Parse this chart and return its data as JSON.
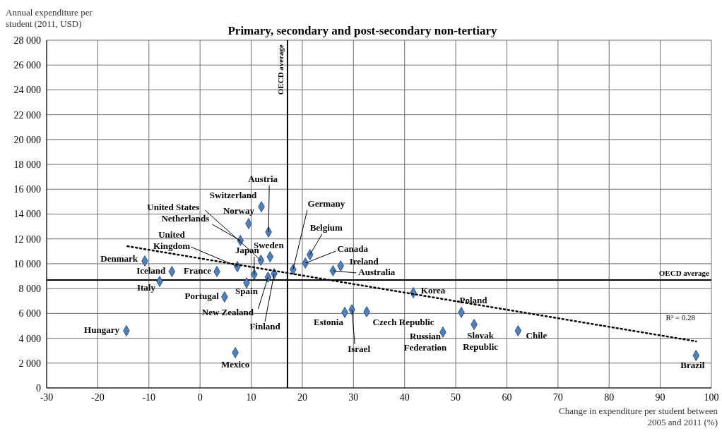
{
  "chart_data": {
    "type": "scatter",
    "title": "Primary, secondary and post-secondary non-tertiary",
    "xlabel": "Change in expenditure per student between 2005 and 2011 (%)",
    "ylabel": "Annual expenditure per student  (2011, USD)",
    "xlim": [
      -30,
      100
    ],
    "xticks": [
      -30,
      -20,
      -10,
      0,
      10,
      20,
      30,
      40,
      50,
      60,
      70,
      80,
      90,
      100
    ],
    "ylim": [
      0,
      28000
    ],
    "yticks": [
      0,
      {
        "value": 2000,
        "label": "2 000"
      },
      {
        "value": 4000,
        "label": "4 000"
      },
      {
        "value": 6000,
        "label": "6 000"
      },
      {
        "value": 8000,
        "label": "8 000"
      },
      {
        "value": 10000,
        "label": "10 000"
      },
      {
        "value": 12000,
        "label": "12 000"
      },
      {
        "value": 14000,
        "label": "14 000"
      },
      {
        "value": 16000,
        "label": "16 000"
      },
      {
        "value": 18000,
        "label": "18 000"
      },
      {
        "value": 20000,
        "label": "20 000"
      },
      {
        "value": 22000,
        "label": "22 000"
      },
      {
        "value": 24000,
        "label": "24 000"
      },
      {
        "value": 26000,
        "label": "26 000"
      },
      {
        "value": 28000,
        "label": "28 000"
      }
    ],
    "grid": true,
    "marker": "diamond",
    "series": [
      {
        "color": "#4f81bd",
        "x": [
          -14.4,
          -10.8,
          -5.5,
          -7.9,
          3.3,
          6.9,
          4.8,
          7.3,
          10.6,
          9.1,
          13.3,
          14.5,
          7.9,
          11.9,
          9.5,
          12.0,
          13.4,
          13.7,
          18.2,
          21.5,
          20.6,
          27.5,
          26.0,
          28.3,
          29.7,
          32.6,
          41.7,
          47.5,
          51.1,
          53.6,
          62.2,
          97.0
        ],
        "values": [
          4600,
          10220,
          9370,
          8580,
          9370,
          2840,
          7330,
          9770,
          9140,
          8460,
          8920,
          9200,
          11870,
          10280,
          13230,
          14590,
          12550,
          10560,
          9540,
          10730,
          10050,
          9820,
          9430,
          6080,
          6300,
          6130,
          7670,
          4490,
          6080,
          5110,
          4600,
          2610
        ]
      },
      {
        "type": "line",
        "color": "#000000",
        "line_style": "dotted",
        "marker": "none",
        "x": [
          -14.2,
          97
        ],
        "values": [
          11410,
          3750
        ]
      }
    ],
    "ref_lines": [
      {
        "axis": "x",
        "value": 17.1,
        "label": "OECD average",
        "color": "#000000"
      },
      {
        "axis": "y",
        "value": 8690,
        "label": "OECD average",
        "color": "#000000"
      }
    ],
    "annotations": [
      {
        "text": "Hungary",
        "x": -14.4,
        "y": 4600
      },
      {
        "text": "Denmark",
        "x": -10.8,
        "y": 10220
      },
      {
        "text": "Iceland",
        "x": -5.5,
        "y": 9370
      },
      {
        "text": "Italy",
        "x": -7.9,
        "y": 8580
      },
      {
        "text": "France",
        "x": 3.3,
        "y": 9370
      },
      {
        "text": "Mexico",
        "x": 6.9,
        "y": 2840
      },
      {
        "text": "Portugal",
        "x": 4.8,
        "y": 7330
      },
      {
        "text": "United Kingdom",
        "x": 7.3,
        "y": 9770
      },
      {
        "text": "Japan",
        "x": 10.6,
        "y": 9140
      },
      {
        "text": "Spain",
        "x": 9.1,
        "y": 8460
      },
      {
        "text": "New Zealand",
        "x": 13.3,
        "y": 8920
      },
      {
        "text": "Finland",
        "x": 14.5,
        "y": 9200
      },
      {
        "text": "Netherlands",
        "x": 7.9,
        "y": 11870
      },
      {
        "text": "United States",
        "x": 11.9,
        "y": 10280
      },
      {
        "text": "Norway",
        "x": 9.5,
        "y": 13230
      },
      {
        "text": "Switzerland",
        "x": 12.0,
        "y": 14590
      },
      {
        "text": "Austria",
        "x": 13.4,
        "y": 12550
      },
      {
        "text": "Sweden",
        "x": 13.7,
        "y": 10560
      },
      {
        "text": "Germany",
        "x": 18.2,
        "y": 9540
      },
      {
        "text": "Belgium",
        "x": 21.5,
        "y": 10730
      },
      {
        "text": "Canada",
        "x": 20.6,
        "y": 10050
      },
      {
        "text": "Ireland",
        "x": 27.5,
        "y": 9820
      },
      {
        "text": "Australia",
        "x": 26.0,
        "y": 9430
      },
      {
        "text": "Estonia",
        "x": 28.3,
        "y": 6080
      },
      {
        "text": "Israel",
        "x": 29.7,
        "y": 6300
      },
      {
        "text": "Czech Republic",
        "x": 32.6,
        "y": 6130
      },
      {
        "text": "Korea",
        "x": 41.7,
        "y": 7670
      },
      {
        "text": "Russian Federation",
        "x": 47.5,
        "y": 4490
      },
      {
        "text": "Poland",
        "x": 51.1,
        "y": 6080
      },
      {
        "text": "Slovak Republic",
        "x": 53.6,
        "y": 5110
      },
      {
        "text": "Chile",
        "x": 62.2,
        "y": 4600
      },
      {
        "text": "Brazil",
        "x": 97.0,
        "y": 2610
      },
      "R² = 0.28"
    ]
  }
}
